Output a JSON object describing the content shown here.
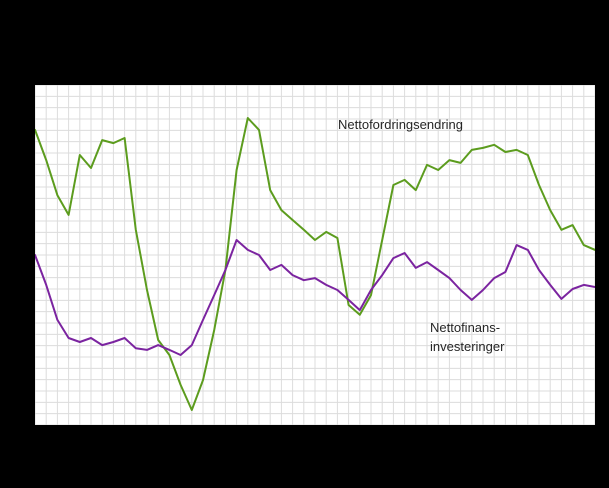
{
  "chart_data": {
    "type": "line",
    "title": "",
    "xlabel": "",
    "ylabel": "",
    "ylim": [
      0,
      100
    ],
    "grid": true,
    "grid_cols": 50,
    "grid_rows": 30,
    "background": "#000000",
    "plot_background": "#ffffff",
    "gridline_color": "#dcdcdc",
    "series": [
      {
        "name": "Nettofordringsendring",
        "color": "#5c9c1e",
        "values": [
          86.8,
          77.9,
          67.6,
          61.8,
          79.4,
          75.6,
          83.8,
          82.9,
          84.4,
          57.4,
          39.7,
          25,
          20.6,
          11.8,
          4.4,
          13.2,
          27.9,
          45.6,
          75,
          90.3,
          86.8,
          69.1,
          63.2,
          60.3,
          57.4,
          54.4,
          56.8,
          55,
          35.3,
          32.4,
          38.2,
          54.4,
          70.6,
          72.1,
          69.1,
          76.5,
          75,
          77.9,
          77.1,
          80.9,
          81.5,
          82.4,
          80.3,
          80.9,
          79.4,
          70.6,
          63.2,
          57.4,
          58.8,
          52.9,
          51.5
        ]
      },
      {
        "name": "Nettofinansinvesteringer",
        "color": "#7b24a0",
        "values": [
          50,
          41.2,
          30.9,
          25.6,
          24.4,
          25.6,
          23.5,
          24.4,
          25.6,
          22.6,
          22.1,
          23.5,
          22.1,
          20.6,
          23.5,
          30.9,
          38.2,
          45.6,
          54.4,
          51.5,
          50,
          45.6,
          47.1,
          44.1,
          42.6,
          43.2,
          41.2,
          39.7,
          36.8,
          33.8,
          39.7,
          44.1,
          49.1,
          50.6,
          46.2,
          47.9,
          45.6,
          43.2,
          39.7,
          36.8,
          39.7,
          43.2,
          45,
          52.9,
          51.5,
          45.6,
          41.2,
          37.1,
          40,
          41.2,
          40.6
        ]
      }
    ],
    "annotations": [
      {
        "text": "Nettofordringsendring"
      },
      {
        "text": "Nettofinans-investeringer"
      }
    ],
    "legend_position": "inline-annotations"
  },
  "labels": {
    "green_series": "Nettofordringsendring",
    "purple_series_line1": "Nettofinans-",
    "purple_series_line2": "investeringer"
  }
}
